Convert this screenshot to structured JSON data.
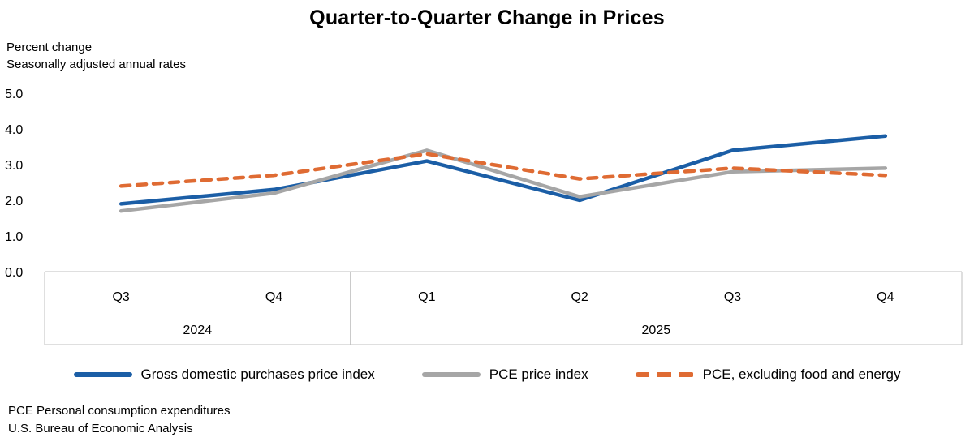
{
  "chart_data": {
    "type": "line",
    "title": "Quarter-to-Quarter Change in Prices",
    "units_line1": "Percent change",
    "units_line2": "Seasonally adjusted annual rates",
    "categories": [
      "Q3",
      "Q4",
      "Q1",
      "Q2",
      "Q3",
      "Q4"
    ],
    "groups": [
      {
        "label": "2024",
        "span": 2
      },
      {
        "label": "2025",
        "span": 4
      }
    ],
    "ylim": [
      0,
      5
    ],
    "ytick_values": [
      0,
      1,
      2,
      3,
      4,
      5
    ],
    "ytick_labels": [
      "0.0",
      "1.0",
      "2.0",
      "3.0",
      "4.0",
      "5.0"
    ],
    "grid": false,
    "legend_position": "bottom",
    "series": [
      {
        "name": "Gross domestic purchases price index",
        "color": "#1b5ea6",
        "dash": false,
        "values": [
          1.9,
          2.3,
          3.1,
          2.0,
          3.4,
          3.8
        ]
      },
      {
        "name": "PCE price index",
        "color": "#a6a6a6",
        "dash": false,
        "values": [
          1.7,
          2.2,
          3.4,
          2.1,
          2.8,
          2.9
        ]
      },
      {
        "name": "PCE, excluding food and energy",
        "color": "#df6b33",
        "dash": true,
        "values": [
          2.4,
          2.7,
          3.3,
          2.6,
          2.9,
          2.7
        ]
      }
    ],
    "footnotes": [
      "PCE Personal consumption expenditures",
      "U.S. Bureau of Economic Analysis"
    ]
  }
}
